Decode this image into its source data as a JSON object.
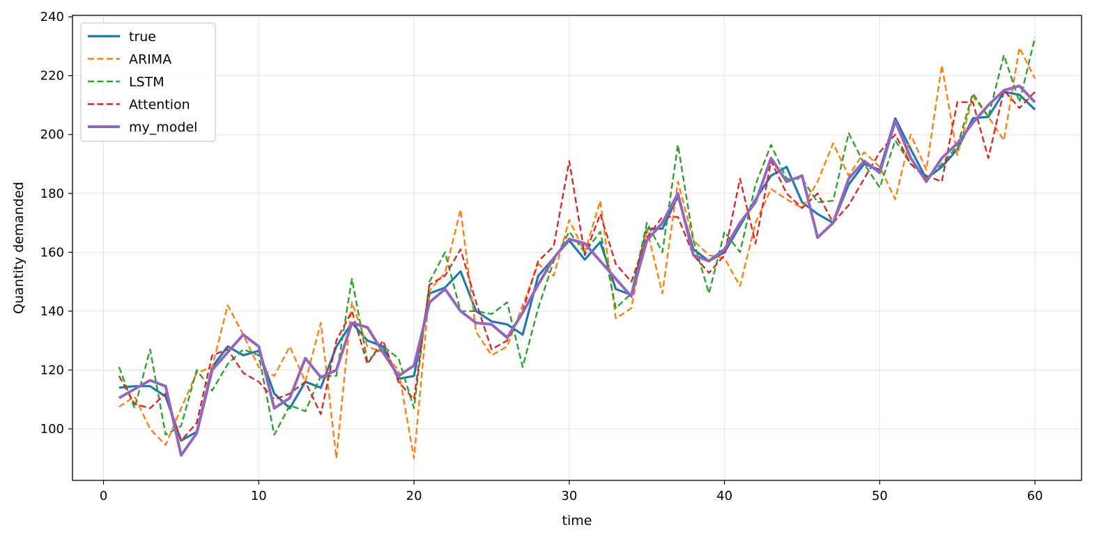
{
  "chart_data": {
    "type": "line",
    "xlabel": "time",
    "ylabel": "Quantity demanded",
    "xlim": [
      -2,
      63
    ],
    "ylim": [
      82.5,
      240.5
    ],
    "xticks": [
      0,
      10,
      20,
      30,
      40,
      50,
      60
    ],
    "yticks": [
      100,
      120,
      140,
      160,
      180,
      200,
      220,
      240
    ],
    "grid": true,
    "legend_position": "top-left",
    "x": [
      1,
      2,
      3,
      4,
      5,
      6,
      7,
      8,
      9,
      10,
      11,
      12,
      13,
      14,
      15,
      16,
      17,
      18,
      19,
      20,
      21,
      22,
      23,
      24,
      25,
      26,
      27,
      28,
      29,
      30,
      31,
      32,
      33,
      34,
      35,
      36,
      37,
      38,
      39,
      40,
      41,
      42,
      43,
      44,
      45,
      46,
      47,
      48,
      49,
      50,
      51,
      52,
      53,
      54,
      55,
      56,
      57,
      58,
      59,
      60
    ],
    "series": [
      {
        "name": "true",
        "color": "#1f77b4",
        "style": "solid",
        "width": 3.2,
        "values": [
          114,
          114.5,
          114.5,
          111,
          96,
          99,
          121,
          128,
          125,
          126.5,
          112,
          107,
          116,
          114,
          128,
          136,
          130,
          128,
          117,
          118,
          146,
          148,
          153.5,
          140,
          136.5,
          135.5,
          132,
          152,
          158,
          164,
          157.5,
          163.5,
          147.5,
          145.5,
          168,
          168,
          179,
          161,
          157,
          160,
          169,
          178,
          186,
          189,
          177,
          173,
          170,
          183,
          190,
          188,
          205.5,
          195,
          185,
          189,
          195,
          205.5,
          206,
          214.5,
          213.5,
          208.5
        ]
      },
      {
        "name": "ARIMA",
        "color": "#ff7f0e",
        "style": "dashed",
        "width": 2.4,
        "values": [
          107.5,
          111,
          100,
          94.5,
          107,
          119,
          121,
          142,
          132,
          121,
          118,
          128,
          116,
          136,
          90,
          143,
          128,
          126,
          120,
          90,
          147,
          153,
          174.5,
          133,
          125,
          128,
          142,
          156,
          152,
          171,
          160,
          177.5,
          137.5,
          141,
          168,
          146,
          184,
          164,
          159,
          158,
          148.5,
          170,
          181.5,
          178,
          175,
          184,
          197,
          186,
          194,
          189,
          178,
          200,
          188,
          223.5,
          193,
          213,
          206,
          198,
          229.5,
          219
        ]
      },
      {
        "name": "LSTM",
        "color": "#2ca02c",
        "style": "dashed",
        "width": 2.4,
        "values": [
          121,
          107,
          127,
          98,
          101,
          120,
          113,
          122,
          127,
          125,
          98,
          108,
          106,
          118,
          118,
          151,
          123,
          128,
          124,
          107,
          150,
          160,
          140,
          140,
          139,
          143,
          121,
          141,
          157,
          167,
          160,
          167,
          141,
          146,
          170,
          160,
          196.5,
          164,
          146,
          167,
          160,
          183,
          196.5,
          185,
          185,
          177,
          177.5,
          200.5,
          190,
          182,
          198,
          190,
          185,
          190,
          196,
          214,
          206,
          227,
          211,
          233
        ]
      },
      {
        "name": "Attention",
        "color": "#d62728",
        "style": "dashed",
        "width": 2.4,
        "values": [
          118,
          108.5,
          107,
          112,
          96,
          102,
          125,
          127,
          119,
          116,
          110,
          112,
          116,
          105,
          130,
          140,
          122,
          130,
          116,
          110,
          149,
          152,
          161,
          143,
          127,
          130,
          140,
          157,
          162,
          191,
          159,
          173,
          156,
          150,
          165,
          172,
          172,
          159,
          153,
          159,
          185,
          163,
          191,
          180,
          175,
          180,
          170,
          176,
          185,
          194,
          200,
          190,
          186,
          184,
          211,
          211,
          192,
          215,
          209,
          214.5
        ]
      },
      {
        "name": "my_model",
        "color": "#9467bd",
        "style": "solid",
        "width": 4,
        "values": [
          110.5,
          113.5,
          116.5,
          114.5,
          91,
          98.5,
          120,
          126,
          132,
          128,
          107,
          110.5,
          124,
          117.5,
          120,
          136,
          134.5,
          126,
          118,
          121.5,
          143,
          147.5,
          140,
          136,
          135.5,
          131,
          139.5,
          149,
          158,
          164.5,
          163,
          157,
          151,
          145,
          164,
          170,
          180,
          159,
          157,
          161,
          170,
          177,
          192,
          184,
          186,
          165,
          170,
          185,
          191,
          187,
          204.5,
          192,
          184,
          192,
          197,
          204,
          210,
          215,
          216.5,
          211
        ]
      }
    ]
  }
}
